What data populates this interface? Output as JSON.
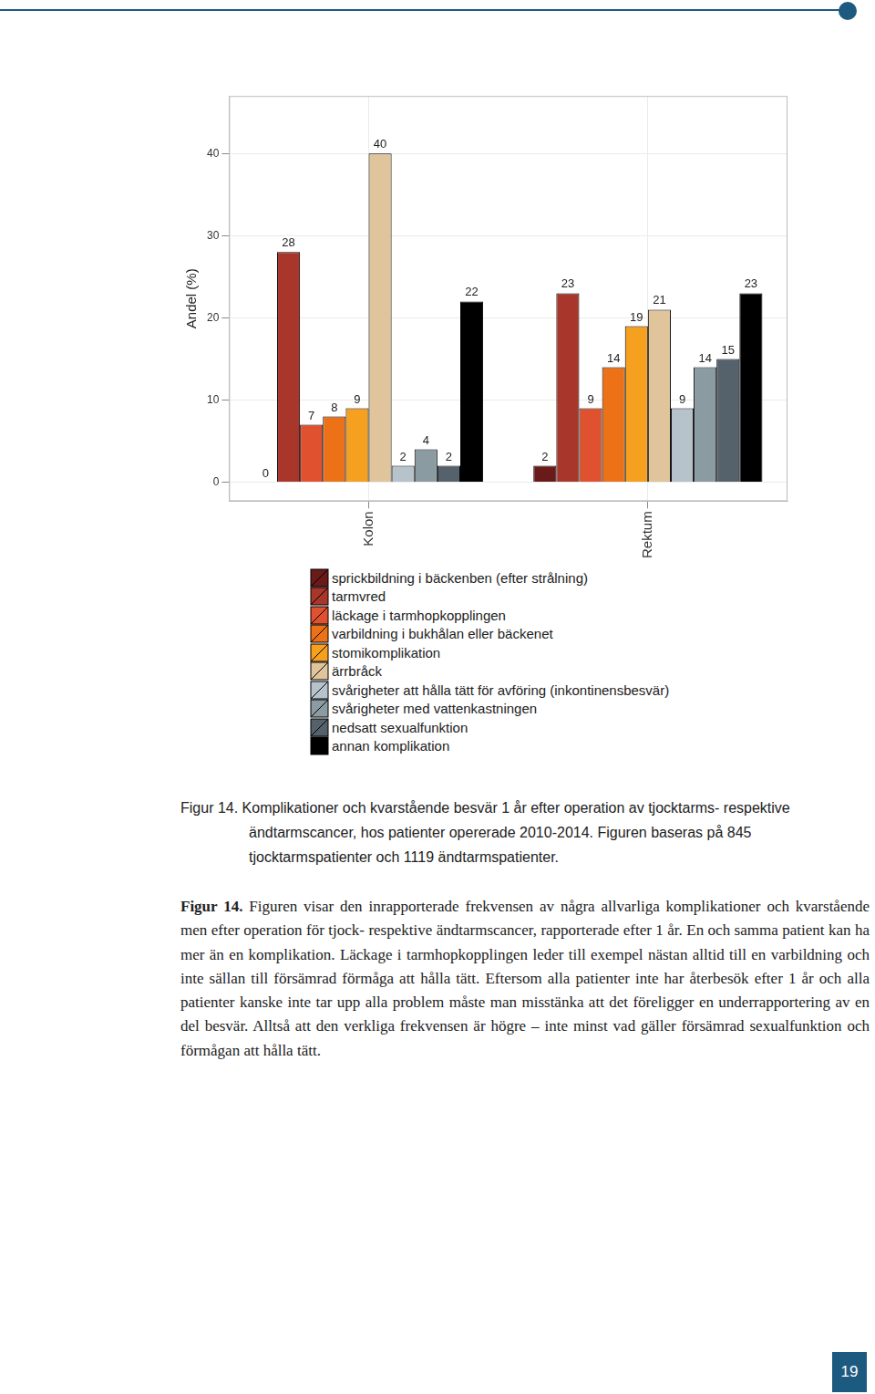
{
  "chart_data": {
    "type": "bar",
    "y_label": "Andel (%)",
    "categories": [
      "Kolon",
      "Rektum"
    ],
    "series": [
      {
        "name": "sprickbildning i bäckenben (efter strålning)",
        "color": "#6b1a1a",
        "values": [
          0,
          2
        ]
      },
      {
        "name": "tarmvred",
        "color": "#a9362b",
        "values": [
          28,
          23
        ]
      },
      {
        "name": "läckage i tarmhopkopplingen",
        "color": "#e0512f",
        "values": [
          7,
          9
        ]
      },
      {
        "name": "varbildning i bukhålan eller bäckenet",
        "color": "#ec7117",
        "values": [
          8,
          14
        ]
      },
      {
        "name": "stomikomplikation",
        "color": "#f6a020",
        "values": [
          9,
          19
        ]
      },
      {
        "name": "ärrbråck",
        "color": "#dfc49c",
        "values": [
          40,
          21
        ]
      },
      {
        "name": "svårigheter att hålla tätt för avföring (inkontinensbesvär)",
        "color": "#b6c3cb",
        "values": [
          2,
          9
        ]
      },
      {
        "name": "svårigheter med vattenkastningen",
        "color": "#8b9ba2",
        "values": [
          4,
          14
        ]
      },
      {
        "name": "nedsatt sexualfunktion",
        "color": "#56626b",
        "values": [
          2,
          15
        ]
      },
      {
        "name": "annan komplikation",
        "color": "#000000",
        "values": [
          22,
          23
        ]
      }
    ],
    "ylim": [
      -2.3,
      47
    ],
    "yticks": [
      0,
      10,
      20,
      30,
      40
    ],
    "grid": true,
    "legend": "bottom",
    "data_labels": true
  },
  "caption": {
    "label": "Figur 14.",
    "text": "Komplikationer och kvarstående besvär 1 år efter operation av tjocktarms- respektive ändtarmscancer, hos patienter opererade 2010-2014. Figuren baseras på 845 tjocktarmspatienter och 1119 ändtarmspatienter."
  },
  "body": {
    "label": "Figur 14.",
    "text": "Figuren visar den inrapporterade frekvensen av några allvarliga komplikationer och kvarstående men efter operation för tjock- respektive ändtarmscancer, rapporterade efter 1 år. En och samma patient kan ha mer än en komplikation. Läckage i tarmhopkopplingen leder till exempel nästan alltid till en varbildning och inte sällan till försämrad förmåga att hålla tätt. Eftersom alla patienter inte har återbesök efter 1 år och alla patienter kanske inte tar upp alla problem måste man misstänka att det föreligger en underrapportering av en del besvär. Alltså att den verkliga frekvensen är högre – inte minst vad gäller försämrad sexualfunktion och förmågan att hålla tätt."
  },
  "page_number": 19
}
